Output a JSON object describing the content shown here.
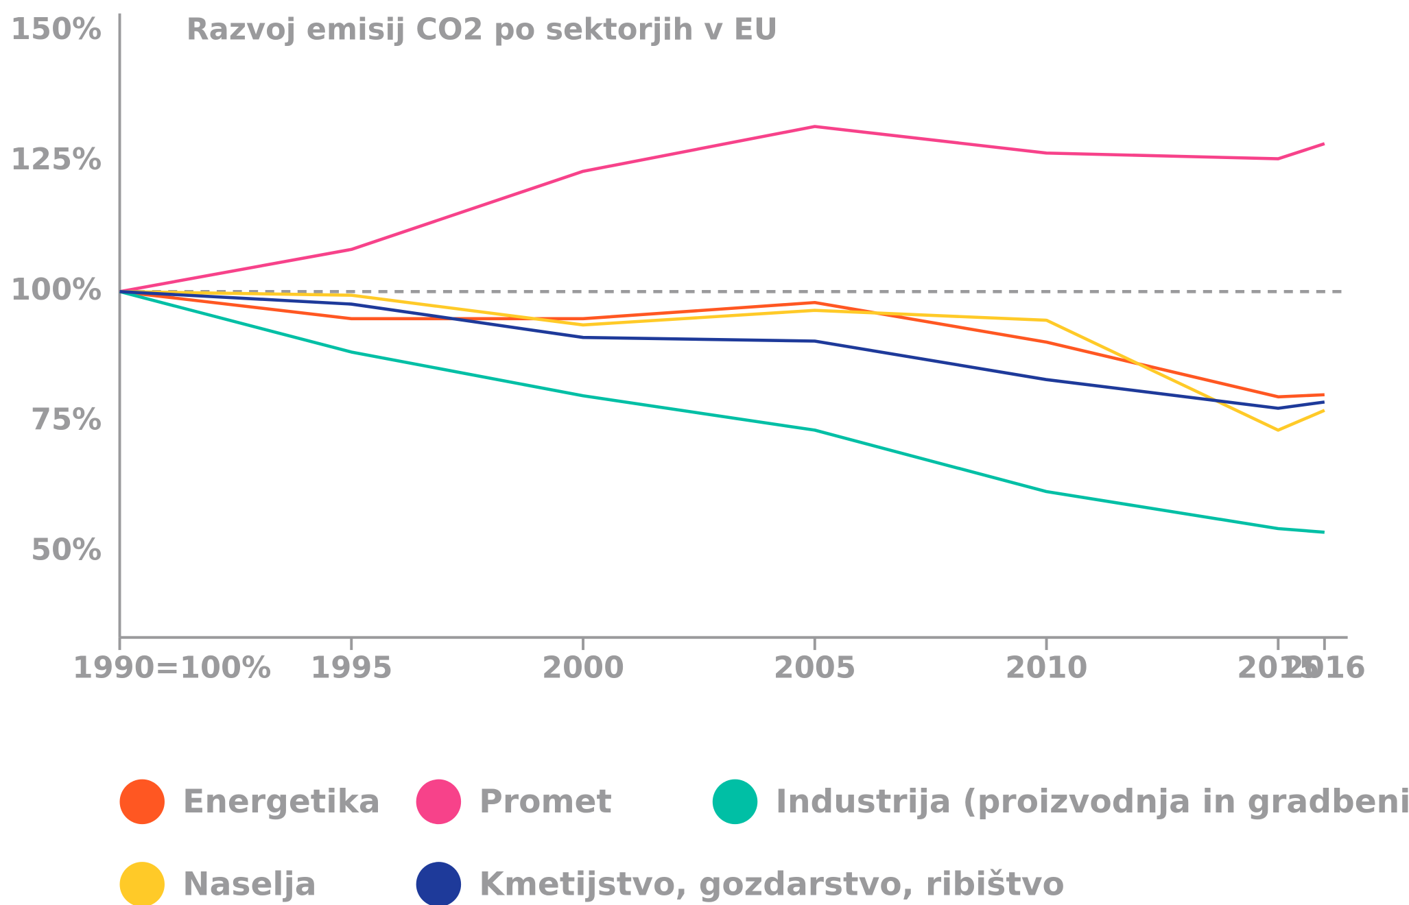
{
  "chart_data": {
    "type": "line",
    "title": "Razvoj emisij CO2 po sektorjih v EU",
    "x": [
      1990,
      1995,
      2000,
      2005,
      2010,
      2015,
      2016
    ],
    "xlim": [
      1990,
      2016.5
    ],
    "xticks": [
      {
        "value": 1990,
        "label": "1990=100%"
      },
      1995,
      2000,
      2005,
      2010,
      2015,
      2016
    ],
    "ylim": [
      33.6,
      153.4
    ],
    "yticks": [
      {
        "value": 150,
        "label": "150%"
      },
      {
        "value": 125,
        "label": "125%"
      },
      {
        "value": 100,
        "label": "100%"
      },
      {
        "value": 75,
        "label": "75%"
      },
      {
        "value": 50,
        "label": "50%"
      }
    ],
    "baseline": 100,
    "series": [
      {
        "name": "Energetika",
        "color": "#ff5722",
        "values": [
          100,
          94.8,
          94.8,
          97.9,
          90.3,
          79.8,
          80.2
        ]
      },
      {
        "name": "Promet",
        "color": "#f7428a",
        "values": [
          100,
          108.1,
          123.1,
          131.7,
          126.6,
          125.5,
          128.4
        ]
      },
      {
        "name": "Industrija (proizvodnja in gradbeništvo)",
        "color": "#00bfa5",
        "values": [
          100,
          88.4,
          80,
          73.4,
          61.6,
          54.5,
          53.8
        ]
      },
      {
        "name": "Naselja",
        "color": "#ffca28",
        "values": [
          100,
          99.3,
          93.6,
          96.4,
          94.5,
          73.4,
          77.2
        ]
      },
      {
        "name": "Kmetijstvo, gozdarstvo, ribištvo",
        "color": "#1e3a9a",
        "values": [
          100,
          97.6,
          91.2,
          90.5,
          83.1,
          77.6,
          78.8
        ]
      }
    ]
  }
}
